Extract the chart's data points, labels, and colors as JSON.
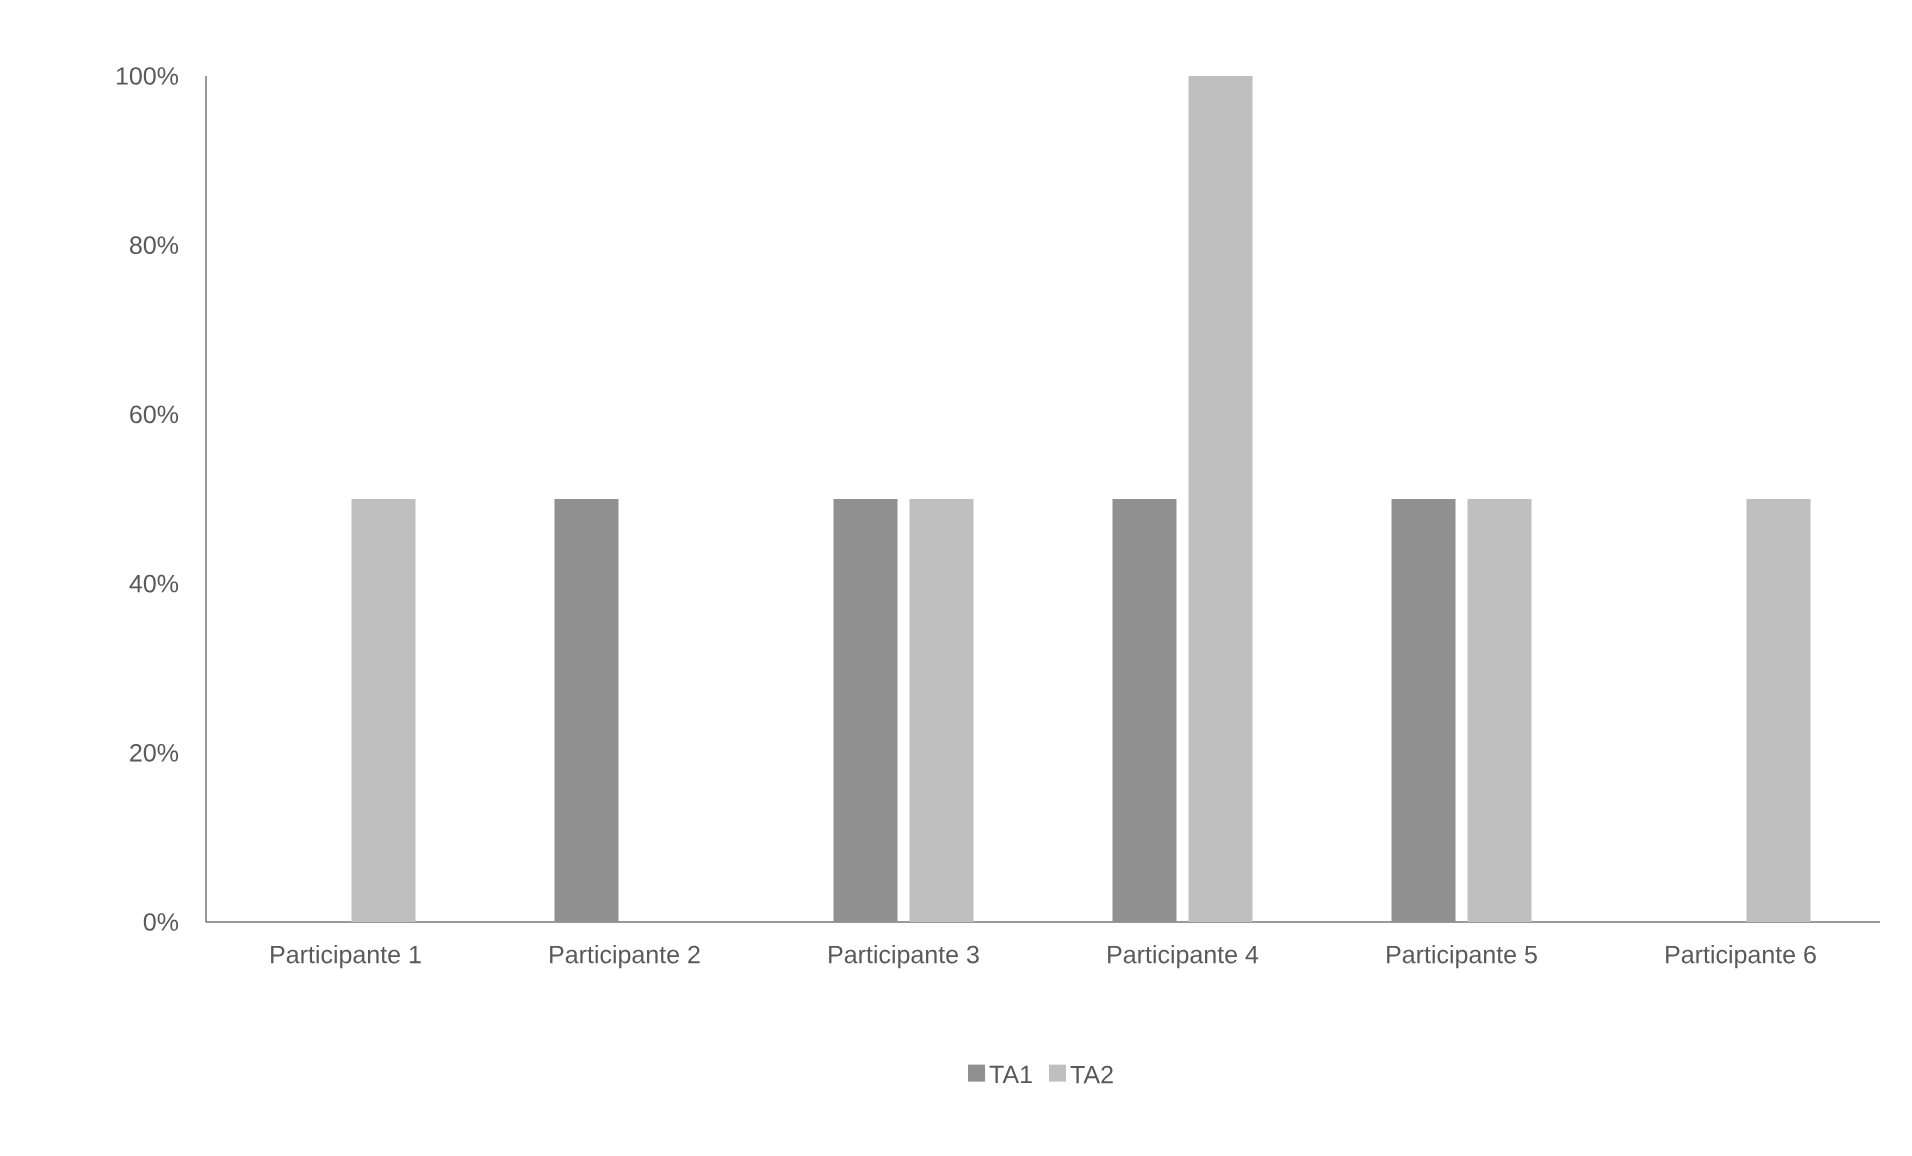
{
  "chart_data": {
    "type": "bar",
    "categories": [
      "Participante 1",
      "Participante 2",
      "Participante 3",
      "Participante 4",
      "Participante 5",
      "Participante 6"
    ],
    "series": [
      {
        "name": "TA1",
        "color": "#909090",
        "values": [
          0,
          50,
          50,
          50,
          50,
          0
        ]
      },
      {
        "name": "TA2",
        "color": "#bfbfbf",
        "values": [
          50,
          0,
          50,
          100,
          50,
          50
        ]
      }
    ],
    "ylim": [
      0,
      100
    ],
    "yticks": [
      {
        "value": 0,
        "label": "0%"
      },
      {
        "value": 20,
        "label": "20%"
      },
      {
        "value": 40,
        "label": "40%"
      },
      {
        "value": 60,
        "label": "60%"
      },
      {
        "value": 80,
        "label": "80%"
      },
      {
        "value": 100,
        "label": "100%"
      }
    ],
    "legend": "bottom"
  }
}
